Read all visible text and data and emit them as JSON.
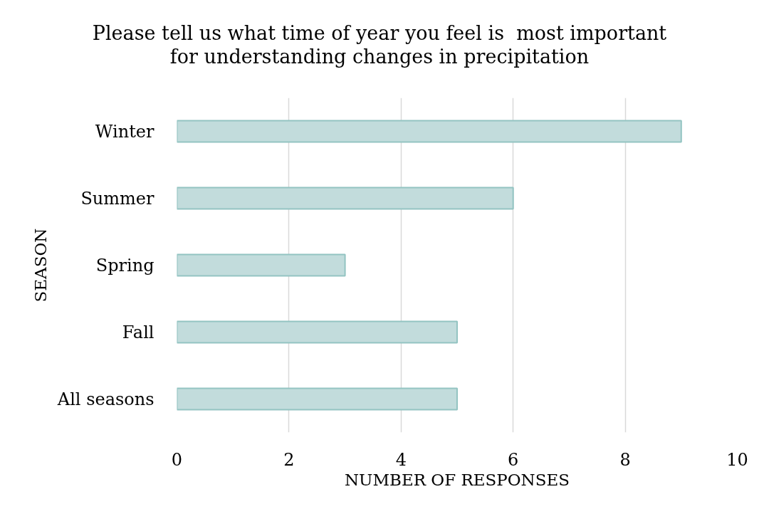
{
  "chart_data": {
    "type": "bar",
    "orientation": "horizontal",
    "title": "Please tell us what time of year you feel is  most important\nfor understanding changes in precipitation",
    "xlabel": "NUMBER OF RESPONSES",
    "ylabel": "SEASON",
    "categories": [
      "Winter",
      "Summer",
      "Spring",
      "Fall",
      "All seasons"
    ],
    "values": [
      9,
      6,
      3,
      5,
      5
    ],
    "color": "#c2dcdc",
    "xlim": [
      0,
      10
    ],
    "xticks": [
      0,
      2,
      4,
      6,
      8,
      10
    ],
    "grid": "x"
  }
}
